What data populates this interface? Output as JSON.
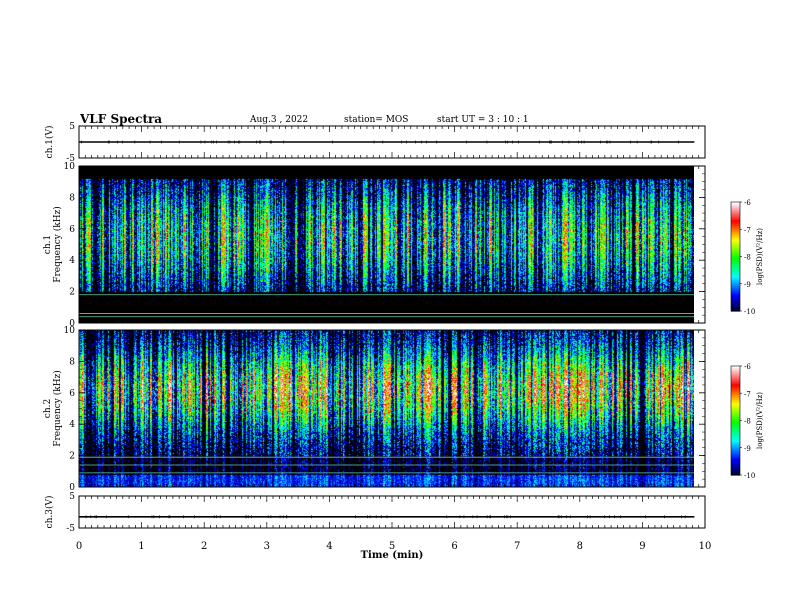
{
  "header": {
    "title": "VLF Spectra",
    "date": "Aug.3 , 2022",
    "station": "station= MOS",
    "start_ut": "start UT = 3 : 10 : 1"
  },
  "colors": {
    "colormap": [
      "#000000",
      "#0000ff",
      "#00ffff",
      "#00ff00",
      "#ffff00",
      "#ff0000",
      "#ffffff"
    ],
    "trace": "#000000"
  },
  "chart_data": [
    {
      "type": "line",
      "name": "ch1-voltage",
      "ylabel": "ch.1(V)",
      "ylim": [
        -5,
        5
      ],
      "yticks": [
        "5",
        "-5"
      ],
      "baseline_value": 0
    },
    {
      "type": "heatmap",
      "name": "ch1-spectrogram",
      "ylabel": "ch.1 Frequency (kHz)",
      "ylim": [
        0,
        10
      ],
      "yticks": [
        "0",
        "2",
        "4",
        "6",
        "8",
        "10"
      ],
      "band_center_khz": 5.5,
      "band_width_khz": 3.5,
      "spike_density": 0.45,
      "level": 0.5,
      "horizontal_lines_khz": [
        0.4,
        0.6,
        1.8
      ],
      "colorbar": {
        "label": "log(PSD)(V²/Hz)",
        "ticks": [
          "-6",
          "-7",
          "-8",
          "-9",
          "-10"
        ],
        "range": [
          -10,
          -6
        ]
      }
    },
    {
      "type": "heatmap",
      "name": "ch2-spectrogram",
      "ylabel": "ch.2 Frequency (kHz)",
      "ylim": [
        0,
        10
      ],
      "yticks": [
        "0",
        "2",
        "4",
        "6",
        "8",
        "10"
      ],
      "band_center_khz": 6.2,
      "band_width_khz": 2.6,
      "spike_density": 0.55,
      "level": 0.78,
      "horizontal_lines_khz": [
        0.9,
        1.4,
        1.9
      ],
      "colorbar": {
        "label": "log(PSD)(V²/Hz)",
        "ticks": [
          "-6",
          "-7",
          "-8",
          "-9",
          "-10"
        ],
        "range": [
          -10,
          -6
        ]
      }
    },
    {
      "type": "line",
      "name": "ch3-voltage",
      "ylabel": "ch.3(V)",
      "ylim": [
        -5,
        5
      ],
      "yticks": [
        "5",
        "-5"
      ],
      "baseline_value": -1.5
    }
  ],
  "xaxis": {
    "label": "Time (min)",
    "xlim": [
      0,
      10
    ],
    "data_end": 9.83,
    "ticks": [
      "0",
      "1",
      "2",
      "3",
      "4",
      "5",
      "6",
      "7",
      "8",
      "9",
      "10"
    ]
  }
}
